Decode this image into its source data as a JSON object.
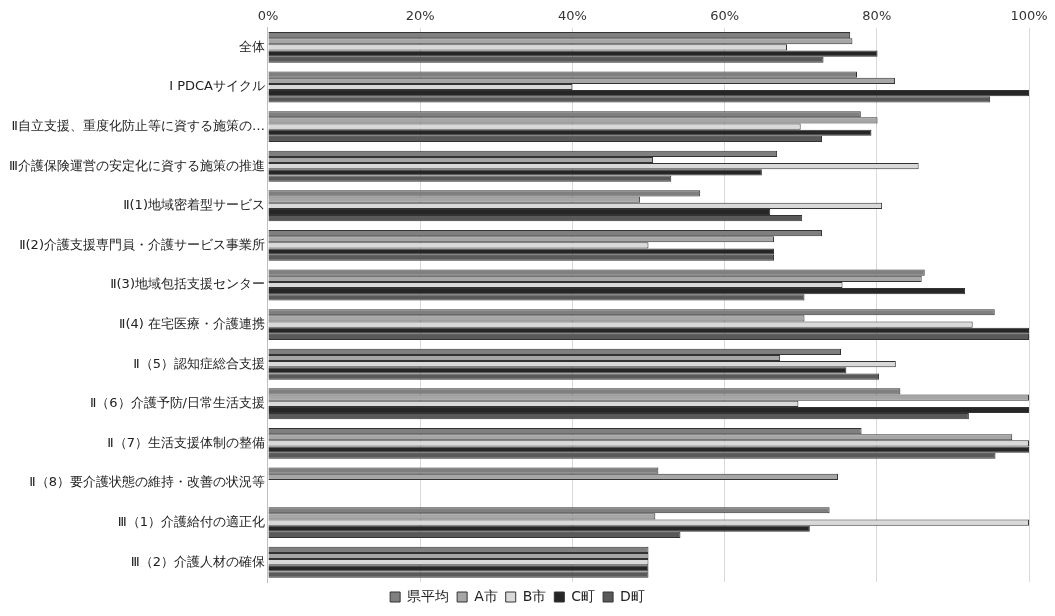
{
  "chart_data": {
    "type": "bar",
    "orientation": "horizontal",
    "categories": [
      "全体",
      "Ⅰ PDCAサイクル",
      "Ⅱ自立支援、重度化防止等に資する施策の…",
      "Ⅲ介護保険運営の安定化に資する施策の推進",
      "Ⅱ(1)地域密着型サービス",
      "Ⅱ(2)介護支援専門員・介護サービス事業所",
      "Ⅱ(3)地域包括支援センター",
      "Ⅱ(4) 在宅医療・介護連携",
      "Ⅱ（5）認知症総合支援",
      "Ⅱ（6）介護予防/日常生活支援",
      "Ⅱ（7）生活支援体制の整備",
      "Ⅱ（8）要介護状態の維持・改善の状況等",
      "Ⅲ（1）介護給付の適正化",
      "Ⅲ（2）介護人材の確保"
    ],
    "series": [
      {
        "name": "県平均",
        "color": "#7f7f7f",
        "values": [
          76.5,
          77.4,
          77.9,
          66.9,
          56.8,
          72.8,
          86.3,
          95.5,
          75.3,
          83.1,
          78.0,
          51.3,
          73.8,
          50.0
        ]
      },
      {
        "name": "A市",
        "color": "#a6a6a6",
        "values": [
          76.8,
          82.4,
          80.1,
          50.6,
          48.9,
          66.5,
          85.9,
          70.5,
          67.3,
          100,
          97.8,
          74.9,
          50.9,
          50.0
        ]
      },
      {
        "name": "B市",
        "color": "#d9d9d9",
        "values": [
          68.2,
          40.0,
          70.0,
          85.5,
          80.7,
          50.0,
          75.5,
          92.6,
          82.5,
          69.7,
          100,
          null,
          100,
          50.0
        ]
      },
      {
        "name": "C町",
        "color": "#262626",
        "values": [
          80.1,
          100,
          79.3,
          64.9,
          66.0,
          66.5,
          91.6,
          100,
          76.0,
          100,
          100,
          null,
          71.2,
          50.0
        ]
      },
      {
        "name": "D町",
        "color": "#595959",
        "values": [
          73.0,
          94.9,
          72.8,
          53.0,
          70.2,
          66.5,
          70.5,
          100,
          80.3,
          92.1,
          95.6,
          null,
          54.2,
          50.0
        ]
      }
    ],
    "xlim": [
      0,
      100
    ],
    "xticks": [
      {
        "value": 0,
        "label": "0%"
      },
      {
        "value": 20,
        "label": "20%"
      },
      {
        "value": 40,
        "label": "40%"
      },
      {
        "value": 60,
        "label": "60%"
      },
      {
        "value": 80,
        "label": "80%"
      },
      {
        "value": 100,
        "label": "100%"
      }
    ],
    "grid": "x",
    "legend": "bottom"
  }
}
